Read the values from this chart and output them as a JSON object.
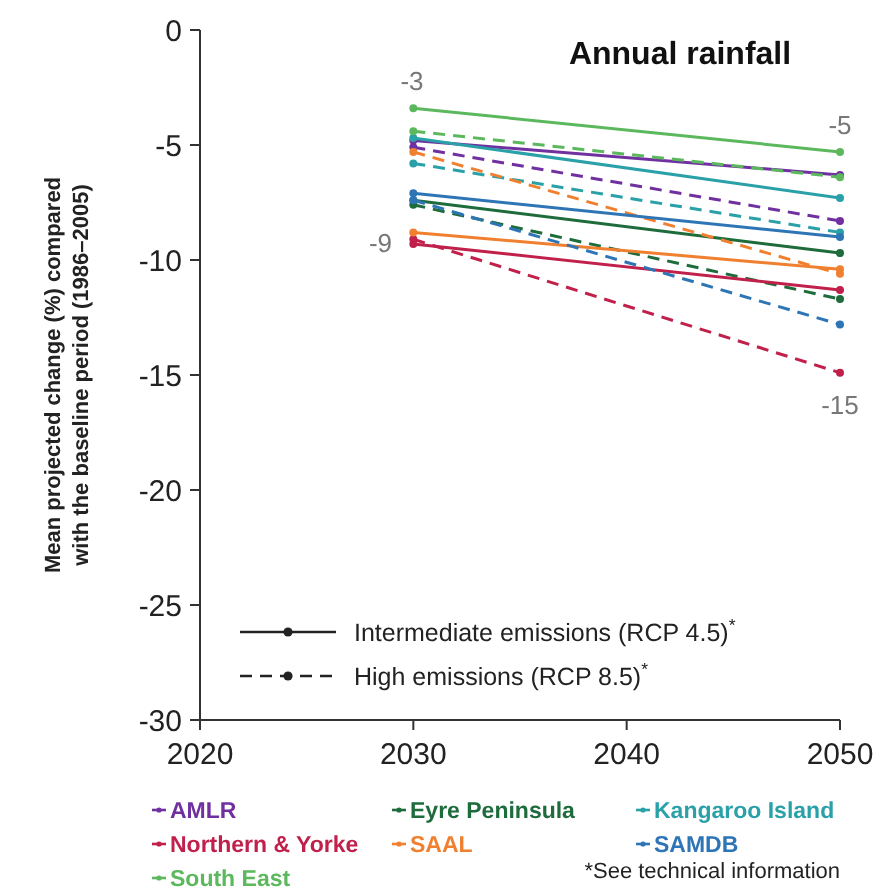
{
  "chart_data": {
    "type": "line",
    "title": "Annual rainfall",
    "ylabel": "Mean projected change (%) compared\nwith the baseline period (1986–2005)",
    "x": [
      2030,
      2050
    ],
    "xlim": [
      2020,
      2050
    ],
    "xticks": [
      2020,
      2030,
      2040,
      2050
    ],
    "ylim": [
      -30,
      0
    ],
    "yticks": [
      0,
      -5,
      -10,
      -15,
      -20,
      -25,
      -30
    ],
    "marker": "circle",
    "grid": false,
    "legend": "bottom",
    "series": [
      {
        "name": "AMLR",
        "color": "#7030a0",
        "line_style": "solid",
        "values": [
          -4.8,
          -6.3
        ]
      },
      {
        "color": "#7030a0",
        "line_style": "dashed",
        "values": [
          -5.1,
          -8.3
        ]
      },
      {
        "name": "Eyre Peninsula",
        "color": "#1e6b3c",
        "line_style": "solid",
        "values": [
          -7.4,
          -9.7
        ]
      },
      {
        "color": "#1e6b3c",
        "line_style": "dashed",
        "values": [
          -7.6,
          -11.7
        ]
      },
      {
        "name": "Kangaroo Island",
        "color": "#2aa0a8",
        "line_style": "solid",
        "values": [
          -4.7,
          -7.3
        ]
      },
      {
        "color": "#2aa0a8",
        "line_style": "dashed",
        "values": [
          -5.8,
          -8.8
        ]
      },
      {
        "name": "Northern & Yorke",
        "color": "#c0204a",
        "line_style": "solid",
        "values": [
          -9.3,
          -11.3
        ]
      },
      {
        "color": "#c0204a",
        "line_style": "dashed",
        "values": [
          -9.1,
          -14.9
        ]
      },
      {
        "name": "SAAL",
        "color": "#f08030",
        "line_style": "solid",
        "values": [
          -8.8,
          -10.4
        ]
      },
      {
        "color": "#f08030",
        "line_style": "dashed",
        "values": [
          -5.3,
          -10.6
        ]
      },
      {
        "name": "SAMDB",
        "color": "#2e75b6",
        "line_style": "solid",
        "values": [
          -7.1,
          -9.0
        ]
      },
      {
        "color": "#2e75b6",
        "line_style": "dashed",
        "values": [
          -7.4,
          -12.8
        ]
      },
      {
        "name": "South East",
        "color": "#5cb85c",
        "line_style": "solid",
        "values": [
          -3.4,
          -5.3
        ]
      },
      {
        "color": "#5cb85c",
        "line_style": "dashed",
        "values": [
          -4.4,
          -6.4
        ]
      }
    ],
    "annotations": [
      "-3",
      "-9",
      "-5",
      "-15",
      "Intermediate emissions (RCP 4.5)$^{*}$",
      "High emissions (RCP 8.5)$^{*}$",
      "*See technical information"
    ]
  }
}
